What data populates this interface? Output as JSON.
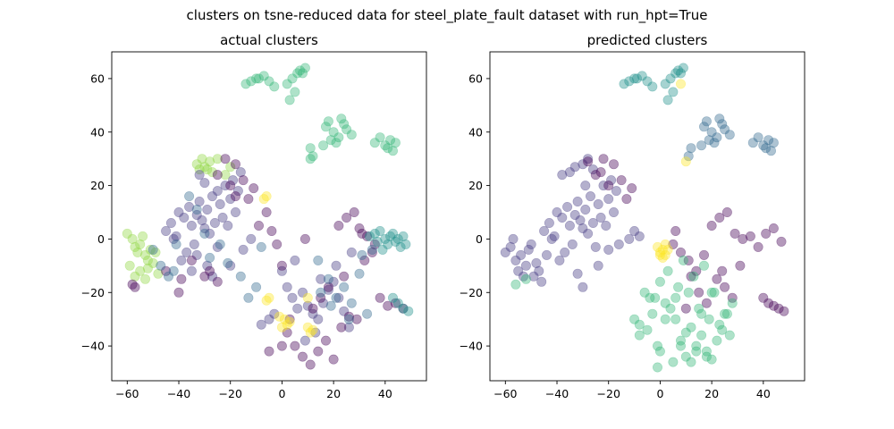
{
  "figure": {
    "suptitle": "clusters on tsne-reduced data for steel_plate_fault dataset with run_hpt=True"
  },
  "palette": {
    "c0": "#440154",
    "c1": "#443983",
    "c2": "#31688e",
    "c3": "#21918c",
    "c4": "#35b779",
    "c5": "#90d743",
    "c6": "#fde725"
  },
  "chart_data": [
    {
      "type": "scatter",
      "title": "actual clusters",
      "xlabel": "",
      "ylabel": "",
      "xlim": [
        -66,
        56
      ],
      "ylim": [
        -53,
        70
      ],
      "xticks": [
        -60,
        -40,
        -20,
        0,
        20,
        40
      ],
      "yticks": [
        -40,
        -20,
        0,
        20,
        40,
        60
      ],
      "grid": false,
      "legend": "none",
      "point_alpha": 0.4,
      "groups": [
        {
          "cluster": "c4",
          "x": [
            -14,
            -12,
            -10,
            -9,
            -7,
            -5,
            -3,
            2,
            4,
            6,
            7,
            8,
            9,
            5,
            3,
            11,
            16,
            17,
            18,
            20,
            22,
            24,
            25,
            27,
            21,
            19,
            23,
            12,
            11,
            36,
            38,
            40,
            41,
            42,
            43,
            44
          ],
          "y": [
            58,
            59,
            60,
            60,
            61,
            59,
            57,
            58,
            60,
            62,
            63,
            62,
            64,
            55,
            52,
            34,
            35,
            42,
            44,
            40,
            38,
            43,
            41,
            39,
            36,
            37,
            45,
            31,
            30,
            36,
            38,
            35,
            34,
            37,
            33,
            36
          ]
        },
        {
          "cluster": "c5",
          "x": [
            -60,
            -58,
            -57,
            -56,
            -55,
            -54,
            -53,
            -52,
            -51,
            -50,
            -55,
            -57,
            -59,
            -53,
            -52,
            -48,
            -49,
            -33,
            -31,
            -30,
            -29,
            -28,
            -27,
            -20,
            -22,
            -25,
            -32
          ],
          "y": [
            2,
            0,
            -3,
            -5,
            -2,
            1,
            -6,
            -8,
            -4,
            -9,
            -12,
            -14,
            -10,
            -15,
            -11,
            -13,
            -5,
            28,
            30,
            27,
            26,
            29,
            25,
            27,
            24,
            30,
            26
          ]
        },
        {
          "cluster": "c1",
          "x": [
            -45,
            -43,
            -42,
            -40,
            -38,
            -36,
            -35,
            -34,
            -33,
            -32,
            -31,
            -30,
            -29,
            -28,
            -27,
            -26,
            -25,
            -24,
            -23,
            -22,
            -21,
            -20,
            -19,
            -18,
            -17,
            -16,
            -37,
            -39,
            -41,
            -29,
            -27,
            -25,
            -30,
            -32,
            -35,
            -33,
            -20,
            -15,
            -12,
            2,
            4,
            6,
            8,
            10,
            12,
            14,
            16,
            18,
            20,
            22,
            24,
            26,
            13,
            9,
            -5,
            -8,
            -3,
            0,
            5,
            15,
            21,
            27
          ],
          "y": [
            3,
            6,
            0,
            10,
            8,
            12,
            5,
            -2,
            9,
            14,
            7,
            4,
            11,
            2,
            16,
            6,
            -3,
            13,
            8,
            20,
            5,
            15,
            22,
            10,
            18,
            25,
            -5,
            -8,
            1,
            -10,
            -14,
            18,
            21,
            24,
            -12,
            -6,
            -10,
            -4,
            0,
            -18,
            -22,
            -26,
            -20,
            -25,
            -28,
            -30,
            -24,
            -19,
            -16,
            -22,
            -27,
            -33,
            -35,
            -38,
            -30,
            -32,
            -28,
            -12,
            -8,
            -15,
            -10,
            -5
          ]
        },
        {
          "cluster": "c0",
          "x": [
            -58,
            -57,
            -39,
            -35,
            -30,
            -25,
            -22,
            -18,
            -15,
            -13,
            -11,
            -9,
            -6,
            -4,
            -2,
            0,
            2,
            5,
            8,
            11,
            14,
            17,
            20,
            23,
            26,
            29,
            32,
            35,
            38,
            41,
            44,
            47,
            22,
            25,
            28,
            31,
            0,
            -5,
            3,
            12,
            18,
            24,
            15,
            9,
            -25,
            -28,
            -20,
            -18,
            30,
            33,
            36,
            -45,
            -40
          ],
          "y": [
            -17,
            -18,
            -15,
            -8,
            -14,
            24,
            30,
            28,
            22,
            15,
            19,
            5,
            10,
            3,
            -2,
            -10,
            -35,
            -40,
            -44,
            -47,
            -42,
            -38,
            -45,
            -33,
            -29,
            -30,
            -8,
            -5,
            -22,
            -25,
            -24,
            -26,
            5,
            8,
            10,
            2,
            -40,
            -42,
            -30,
            -26,
            -18,
            -14,
            -22,
            0,
            -16,
            -12,
            20,
            16,
            4,
            1,
            -2,
            -12,
            -20
          ]
        },
        {
          "cluster": "c2",
          "x": [
            -50,
            -47,
            -44,
            -41,
            -36,
            -33,
            -28,
            -24,
            -21,
            -16,
            -13,
            -10,
            -8,
            15,
            18,
            21,
            24,
            27,
            30,
            14,
            19,
            26,
            31,
            33,
            35,
            -42,
            -30
          ],
          "y": [
            -4,
            -10,
            -14,
            -2,
            16,
            11,
            -7,
            -2,
            -9,
            -14,
            -22,
            -18,
            -3,
            -20,
            -15,
            -22,
            -18,
            -24,
            -13,
            -8,
            -25,
            -30,
            -6,
            -28,
            -4,
            -12,
            2
          ]
        },
        {
          "cluster": "c3",
          "x": [
            34,
            36,
            38,
            40,
            41,
            42,
            43,
            44,
            45,
            46,
            47,
            48,
            39,
            37,
            43,
            45,
            47,
            49
          ],
          "y": [
            1,
            2,
            3,
            0,
            -2,
            1,
            2,
            -1,
            0,
            -3,
            1,
            -2,
            -4,
            -1,
            -22,
            -24,
            -26,
            -27
          ]
        },
        {
          "cluster": "c6",
          "x": [
            -7,
            -6,
            10,
            11,
            12,
            10,
            1,
            2,
            3,
            -1,
            0,
            -5,
            -6
          ],
          "y": [
            15,
            16,
            -33,
            -35,
            -34,
            -22,
            -30,
            -32,
            -31,
            -29,
            -33,
            -22,
            -23
          ]
        }
      ]
    },
    {
      "type": "scatter",
      "title": "predicted clusters",
      "xlabel": "",
      "ylabel": "",
      "xlim": [
        -66,
        56
      ],
      "ylim": [
        -53,
        70
      ],
      "xticks": [
        -60,
        -40,
        -20,
        0,
        20,
        40
      ],
      "yticks": [
        -40,
        -20,
        0,
        20,
        40,
        60
      ],
      "grid": false,
      "legend": "none",
      "point_alpha": 0.4,
      "groups": [
        {
          "cluster": "c3",
          "x": [
            -14,
            -12,
            -10,
            -9,
            -7,
            -5,
            -3,
            2,
            4,
            6,
            7,
            8,
            9,
            5,
            3
          ],
          "y": [
            58,
            59,
            60,
            60,
            61,
            59,
            57,
            58,
            60,
            62,
            63,
            62,
            64,
            55,
            52
          ]
        },
        {
          "cluster": "c2",
          "x": [
            11,
            12,
            16,
            17,
            18,
            20,
            22,
            24,
            25,
            27,
            21,
            19,
            23,
            36,
            38,
            40,
            41,
            42,
            43,
            44
          ],
          "y": [
            31,
            34,
            35,
            42,
            44,
            40,
            38,
            43,
            41,
            39,
            36,
            37,
            45,
            36,
            38,
            35,
            34,
            37,
            33,
            36
          ]
        },
        {
          "cluster": "c1",
          "x": [
            -60,
            -58,
            -57,
            -56,
            -55,
            -54,
            -53,
            -52,
            -51,
            -50,
            -48,
            -45,
            -43,
            -42,
            -40,
            -38,
            -36,
            -35,
            -34,
            -33,
            -32,
            -31,
            -30,
            -29,
            -28,
            -27,
            -26,
            -25,
            -24,
            -23,
            -22,
            -21,
            -20,
            -19,
            -18,
            -17,
            -37,
            -39,
            -41,
            -47,
            -44,
            -46,
            -49,
            -30,
            -28,
            -26,
            -33,
            -35,
            -38,
            -24,
            -20,
            -16,
            -12,
            -10,
            -8,
            -32,
            -30,
            -29
          ],
          "y": [
            -5,
            -3,
            0,
            -8,
            -12,
            -6,
            -14,
            -10,
            -4,
            -2,
            -9,
            3,
            6,
            0,
            10,
            8,
            12,
            5,
            -2,
            9,
            14,
            7,
            4,
            11,
            2,
            16,
            6,
            -3,
            13,
            8,
            20,
            5,
            15,
            22,
            10,
            18,
            -5,
            -8,
            1,
            -12,
            -6,
            -16,
            -14,
            28,
            30,
            26,
            27,
            25,
            24,
            -10,
            -4,
            -2,
            0,
            3,
            1,
            -13,
            -18,
            20
          ]
        },
        {
          "cluster": "c0",
          "x": [
            -25,
            -22,
            -18,
            -15,
            -13,
            -11,
            -28,
            -20,
            -23,
            5,
            8,
            11,
            14,
            17,
            20,
            23,
            26,
            29,
            32,
            35,
            38,
            41,
            44,
            47,
            22,
            25,
            28,
            31,
            15,
            18,
            12,
            10,
            40,
            42,
            44,
            46,
            48,
            6,
            24
          ],
          "y": [
            24,
            30,
            28,
            22,
            15,
            19,
            29,
            20,
            25,
            -2,
            -5,
            -8,
            -12,
            -6,
            5,
            8,
            10,
            2,
            0,
            1,
            -3,
            2,
            4,
            -1,
            -15,
            -18,
            -22,
            -10,
            -20,
            -24,
            -14,
            -26,
            -22,
            -24,
            -25,
            -26,
            -27,
            3,
            -12
          ]
        },
        {
          "cluster": "c4",
          "x": [
            -10,
            -8,
            -5,
            -3,
            -1,
            0,
            2,
            4,
            6,
            8,
            10,
            12,
            14,
            16,
            18,
            20,
            22,
            24,
            26,
            28,
            -6,
            -4,
            0,
            3,
            7,
            11,
            15,
            19,
            23,
            27,
            9,
            13,
            17,
            21,
            25,
            -1,
            5,
            8,
            12,
            16,
            20,
            -8,
            -2,
            2,
            6,
            10,
            14,
            18,
            -56,
            -52
          ],
          "y": [
            -30,
            -32,
            -34,
            -28,
            -40,
            -42,
            -30,
            -26,
            -22,
            -38,
            -44,
            -46,
            -40,
            -36,
            -42,
            -45,
            -38,
            -34,
            -28,
            -24,
            -20,
            -22,
            -16,
            -12,
            -18,
            -20,
            -26,
            -30,
            -32,
            -36,
            -8,
            -14,
            -10,
            -20,
            -28,
            -48,
            -46,
            -40,
            -33,
            -28,
            -20,
            -36,
            -22,
            -24,
            -30,
            -35,
            -42,
            -44,
            -17,
            -15
          ]
        },
        {
          "cluster": "c6",
          "x": [
            -1,
            0,
            1,
            2,
            3,
            1,
            0,
            2,
            8,
            10
          ],
          "y": [
            -3,
            -5,
            -4,
            -6,
            -4,
            -7,
            -6,
            -2,
            58,
            29
          ]
        }
      ]
    }
  ]
}
